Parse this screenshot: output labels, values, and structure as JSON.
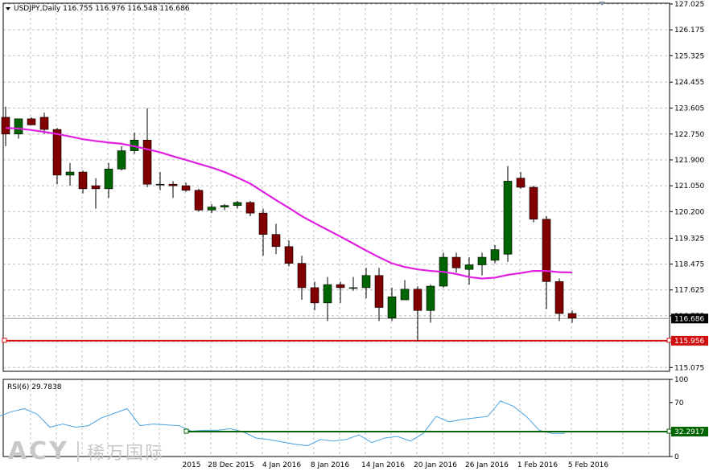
{
  "header": {
    "symbol": "USDJPY,Daily",
    "ohlc": "116.755 116.976 116.548 116.686"
  },
  "watermark": {
    "logo": "ACY",
    "chinese": "稀万国际"
  },
  "colors": {
    "bull": "#006400",
    "bear": "#800000",
    "ma": "#e020e0",
    "grid": "#c0c0c0",
    "support": "#d01010",
    "rsi": "#4aa3e0",
    "rsi_level": "#006400",
    "axis": "#000000"
  },
  "chart_data": [
    {
      "type": "candlestick",
      "title": "USDJPY,Daily",
      "price_axis_ticks": [
        "127.025",
        "126.175",
        "125.325",
        "124.455",
        "123.605",
        "122.750",
        "121.900",
        "121.050",
        "120.200",
        "119.325",
        "118.475",
        "117.625",
        "116.775",
        "115.925",
        "115.075"
      ],
      "ylim": [
        114.95,
        127.05
      ],
      "x_labels": [
        "2015",
        "28 Dec 2015",
        "4 Jan 2016",
        "8 Jan 2016",
        "14 Jan 2016",
        "20 Jan 2016",
        "26 Jan 2016",
        "1 Feb 2016",
        "5 Feb 2016"
      ],
      "current_price": "116.686",
      "support_level": "115.956",
      "candles": [
        {
          "o": 123.3,
          "h": 123.65,
          "l": 122.35,
          "c": 122.75
        },
        {
          "o": 122.75,
          "h": 123.25,
          "l": 122.6,
          "c": 123.25
        },
        {
          "o": 123.25,
          "h": 123.3,
          "l": 123.05,
          "c": 123.05
        },
        {
          "o": 123.3,
          "h": 123.45,
          "l": 122.75,
          "c": 122.9
        },
        {
          "o": 122.9,
          "h": 122.95,
          "l": 121.1,
          "c": 121.4
        },
        {
          "o": 121.4,
          "h": 121.8,
          "l": 121.05,
          "c": 121.5
        },
        {
          "o": 121.5,
          "h": 121.55,
          "l": 120.8,
          "c": 120.95
        },
        {
          "o": 121.05,
          "h": 121.3,
          "l": 120.3,
          "c": 120.95
        },
        {
          "o": 120.95,
          "h": 121.8,
          "l": 120.65,
          "c": 121.6
        },
        {
          "o": 121.6,
          "h": 122.35,
          "l": 121.55,
          "c": 122.2
        },
        {
          "o": 122.2,
          "h": 122.8,
          "l": 122.1,
          "c": 122.55
        },
        {
          "o": 122.55,
          "h": 123.6,
          "l": 121.0,
          "c": 121.1
        },
        {
          "o": 121.1,
          "h": 121.5,
          "l": 120.9,
          "c": 121.1
        },
        {
          "o": 121.1,
          "h": 121.2,
          "l": 120.65,
          "c": 121.05
        },
        {
          "o": 121.05,
          "h": 121.15,
          "l": 120.85,
          "c": 120.9
        },
        {
          "o": 120.9,
          "h": 120.95,
          "l": 120.2,
          "c": 120.25
        },
        {
          "o": 120.25,
          "h": 120.45,
          "l": 120.15,
          "c": 120.35
        },
        {
          "o": 120.35,
          "h": 120.45,
          "l": 120.25,
          "c": 120.4
        },
        {
          "o": 120.4,
          "h": 120.55,
          "l": 120.3,
          "c": 120.5
        },
        {
          "o": 120.5,
          "h": 120.55,
          "l": 120.05,
          "c": 120.15
        },
        {
          "o": 120.15,
          "h": 120.3,
          "l": 118.75,
          "c": 119.45
        },
        {
          "o": 119.45,
          "h": 119.8,
          "l": 118.8,
          "c": 119.05
        },
        {
          "o": 119.05,
          "h": 119.25,
          "l": 118.4,
          "c": 118.5
        },
        {
          "o": 118.5,
          "h": 118.75,
          "l": 117.3,
          "c": 117.7
        },
        {
          "o": 117.7,
          "h": 117.9,
          "l": 116.95,
          "c": 117.2
        },
        {
          "o": 117.2,
          "h": 118.05,
          "l": 116.6,
          "c": 117.8
        },
        {
          "o": 117.8,
          "h": 117.9,
          "l": 117.2,
          "c": 117.7
        },
        {
          "o": 117.7,
          "h": 118.05,
          "l": 117.6,
          "c": 117.7
        },
        {
          "o": 117.7,
          "h": 118.35,
          "l": 117.35,
          "c": 118.1
        },
        {
          "o": 118.1,
          "h": 118.35,
          "l": 116.6,
          "c": 117.05
        },
        {
          "o": 116.7,
          "h": 117.7,
          "l": 116.6,
          "c": 117.4
        },
        {
          "o": 117.3,
          "h": 117.95,
          "l": 117.3,
          "c": 117.65
        },
        {
          "o": 117.65,
          "h": 117.75,
          "l": 115.95,
          "c": 116.95
        },
        {
          "o": 116.95,
          "h": 117.8,
          "l": 116.55,
          "c": 117.75
        },
        {
          "o": 117.75,
          "h": 118.85,
          "l": 117.7,
          "c": 118.7
        },
        {
          "o": 118.7,
          "h": 118.85,
          "l": 118.2,
          "c": 118.35
        },
        {
          "o": 118.3,
          "h": 118.7,
          "l": 117.8,
          "c": 118.45
        },
        {
          "o": 118.45,
          "h": 118.85,
          "l": 118.1,
          "c": 118.7
        },
        {
          "o": 118.6,
          "h": 119.1,
          "l": 118.5,
          "c": 118.95
        },
        {
          "o": 118.8,
          "h": 121.7,
          "l": 118.55,
          "c": 121.2
        },
        {
          "o": 121.3,
          "h": 121.5,
          "l": 120.95,
          "c": 121.0
        },
        {
          "o": 121.0,
          "h": 121.05,
          "l": 119.85,
          "c": 119.95
        },
        {
          "o": 119.95,
          "h": 120.05,
          "l": 117.0,
          "c": 117.9
        },
        {
          "o": 117.9,
          "h": 118.0,
          "l": 116.6,
          "c": 116.85
        },
        {
          "o": 116.85,
          "h": 116.95,
          "l": 116.55,
          "c": 116.7
        }
      ],
      "ma": [
        122.95,
        122.93,
        122.88,
        122.82,
        122.75,
        122.67,
        122.58,
        122.52,
        122.47,
        122.43,
        122.35,
        122.25,
        122.15,
        122.02,
        121.9,
        121.77,
        121.65,
        121.5,
        121.32,
        121.12,
        120.85,
        120.58,
        120.32,
        120.05,
        119.82,
        119.6,
        119.38,
        119.15,
        118.92,
        118.7,
        118.5,
        118.38,
        118.3,
        118.25,
        118.22,
        118.15,
        118.05,
        118.0,
        118.03,
        118.12,
        118.18,
        118.25,
        118.25,
        118.21,
        118.2
      ]
    },
    {
      "type": "line",
      "title": "RSI(6) 29.7838",
      "ylim": [
        0,
        100
      ],
      "ticks": [
        "100",
        "70",
        "0"
      ],
      "level_label": "32.2917",
      "level": 32.2917,
      "values": [
        52,
        58,
        62,
        55,
        38,
        42,
        38,
        40,
        50,
        56,
        62,
        40,
        42,
        41,
        40,
        33,
        34,
        34,
        36,
        32,
        24,
        22,
        19,
        16,
        14,
        22,
        20,
        22,
        28,
        18,
        24,
        26,
        20,
        30,
        52,
        45,
        48,
        50,
        52,
        72,
        65,
        52,
        34,
        30,
        30
      ]
    }
  ]
}
